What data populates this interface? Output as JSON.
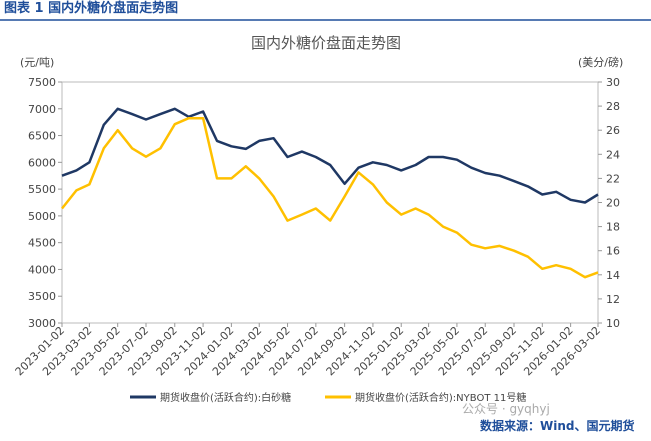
{
  "header": "图表 1  国内外糖价盘面走势图",
  "chart_data": {
    "type": "line",
    "title": "国内外糖价盘面走势图",
    "y_label": "(元/吨)",
    "y2_label": "(美分/磅)",
    "x": [
      "2023-01-02",
      "2023-02-02",
      "2023-03-02",
      "2023-04-02",
      "2023-05-02",
      "2023-06-02",
      "2023-07-02",
      "2023-08-02",
      "2023-09-02",
      "2023-10-02",
      "2023-11-02",
      "2023-12-02",
      "2024-01-02",
      "2024-02-02",
      "2024-03-02",
      "2024-04-02",
      "2024-05-02",
      "2024-06-02",
      "2024-07-02",
      "2024-08-02",
      "2024-09-02",
      "2024-10-02",
      "2024-11-02",
      "2024-12-02",
      "2025-01-02",
      "2025-02-02",
      "2025-03-02",
      "2025-04-02",
      "2025-05-02",
      "2025-06-02",
      "2025-07-02",
      "2025-08-02",
      "2025-09-02",
      "2025-10-02",
      "2025-11-02",
      "2025-12-02",
      "2026-01-02",
      "2026-02-02",
      "2026-03-02"
    ],
    "series": [
      {
        "name": "期货收盘价(活跃合约):白砂糖",
        "color": "#1f3864",
        "axis": "y",
        "values": [
          5750,
          5850,
          6000,
          6700,
          7000,
          6900,
          6800,
          6900,
          7000,
          6850,
          6950,
          6400,
          6300,
          6250,
          6400,
          6450,
          6100,
          6200,
          6100,
          5950,
          5600,
          5900,
          6000,
          5950,
          5850,
          5950,
          6100,
          6100,
          6050,
          5900,
          5800,
          5750,
          5650,
          5550,
          5400,
          5450,
          5300,
          5250,
          5400
        ]
      },
      {
        "name": "期货收盘价(活跃合约):NYBOT 11号糖",
        "color": "#ffc000",
        "axis": "y2",
        "values": [
          19.5,
          21,
          21.5,
          24.5,
          26,
          24.5,
          23.8,
          24.5,
          26.5,
          27,
          27,
          22,
          22,
          23,
          22,
          20.5,
          18.5,
          19,
          19.5,
          18.5,
          20.5,
          22.5,
          21.5,
          20,
          19,
          19.5,
          19,
          18,
          17.5,
          16.5,
          16.2,
          16.4,
          16,
          15.5,
          14.5,
          14.8,
          14.5,
          13.8,
          14.2
        ]
      }
    ],
    "ylim": [
      3000,
      7500
    ],
    "yticks": [
      3000,
      3500,
      4000,
      4500,
      5000,
      5500,
      6000,
      6500,
      7000,
      7500
    ],
    "y2lim": [
      10,
      30
    ],
    "y2ticks": [
      10,
      12,
      14,
      16,
      18,
      20,
      22,
      24,
      26,
      28,
      30
    ],
    "xticks": [
      "2023-01-02",
      "2023-03-02",
      "2023-05-02",
      "2023-07-02",
      "2023-09-02",
      "2023-11-02",
      "2024-01-02",
      "2024-03-02",
      "2024-05-02",
      "2024-07-02",
      "2024-09-02",
      "2024-11-02",
      "2025-01-02",
      "2025-03-02",
      "2025-05-02",
      "2025-07-02",
      "2025-09-02",
      "2025-11-02",
      "2026-01-02",
      "2026-03-02"
    ],
    "legend": "bottom"
  },
  "watermark": "公众号 · gyqhyj",
  "source": "数据来源：Wind、国元期货"
}
